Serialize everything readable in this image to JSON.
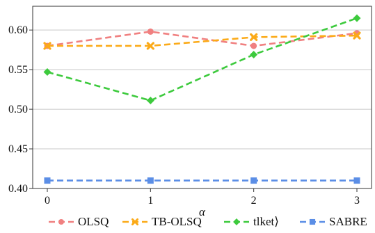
{
  "chart_data": {
    "type": "line",
    "title": "",
    "xlabel": "α",
    "ylabel": "",
    "x": [
      0,
      1,
      2,
      3
    ],
    "x_ticks": [
      "0",
      "1",
      "2",
      "3"
    ],
    "ylim": [
      0.4,
      0.63
    ],
    "y_ticks": [
      0.4,
      0.45,
      0.5,
      0.55,
      0.6
    ],
    "y_tick_labels": [
      "0.40",
      "0.45",
      "0.50",
      "0.55",
      "0.60"
    ],
    "grid": "horizontal",
    "legend": "bottom",
    "series": [
      {
        "name": "OLSQ",
        "values": [
          0.58,
          0.598,
          0.58,
          0.596
        ],
        "color": "#f08080",
        "marker": "circle",
        "dash": "long"
      },
      {
        "name": "TB-OLSQ",
        "values": [
          0.58,
          0.58,
          0.591,
          0.593
        ],
        "color": "#fbaa18",
        "marker": "x",
        "dash": "long"
      },
      {
        "name": "tlket⟩",
        "values": [
          0.547,
          0.511,
          0.569,
          0.615
        ],
        "color": "#3dca3d",
        "marker": "diamond",
        "dash": "long"
      },
      {
        "name": "SABRE",
        "values": [
          0.41,
          0.41,
          0.41,
          0.41
        ],
        "color": "#5b8ee6",
        "marker": "square",
        "dash": "long"
      }
    ]
  }
}
